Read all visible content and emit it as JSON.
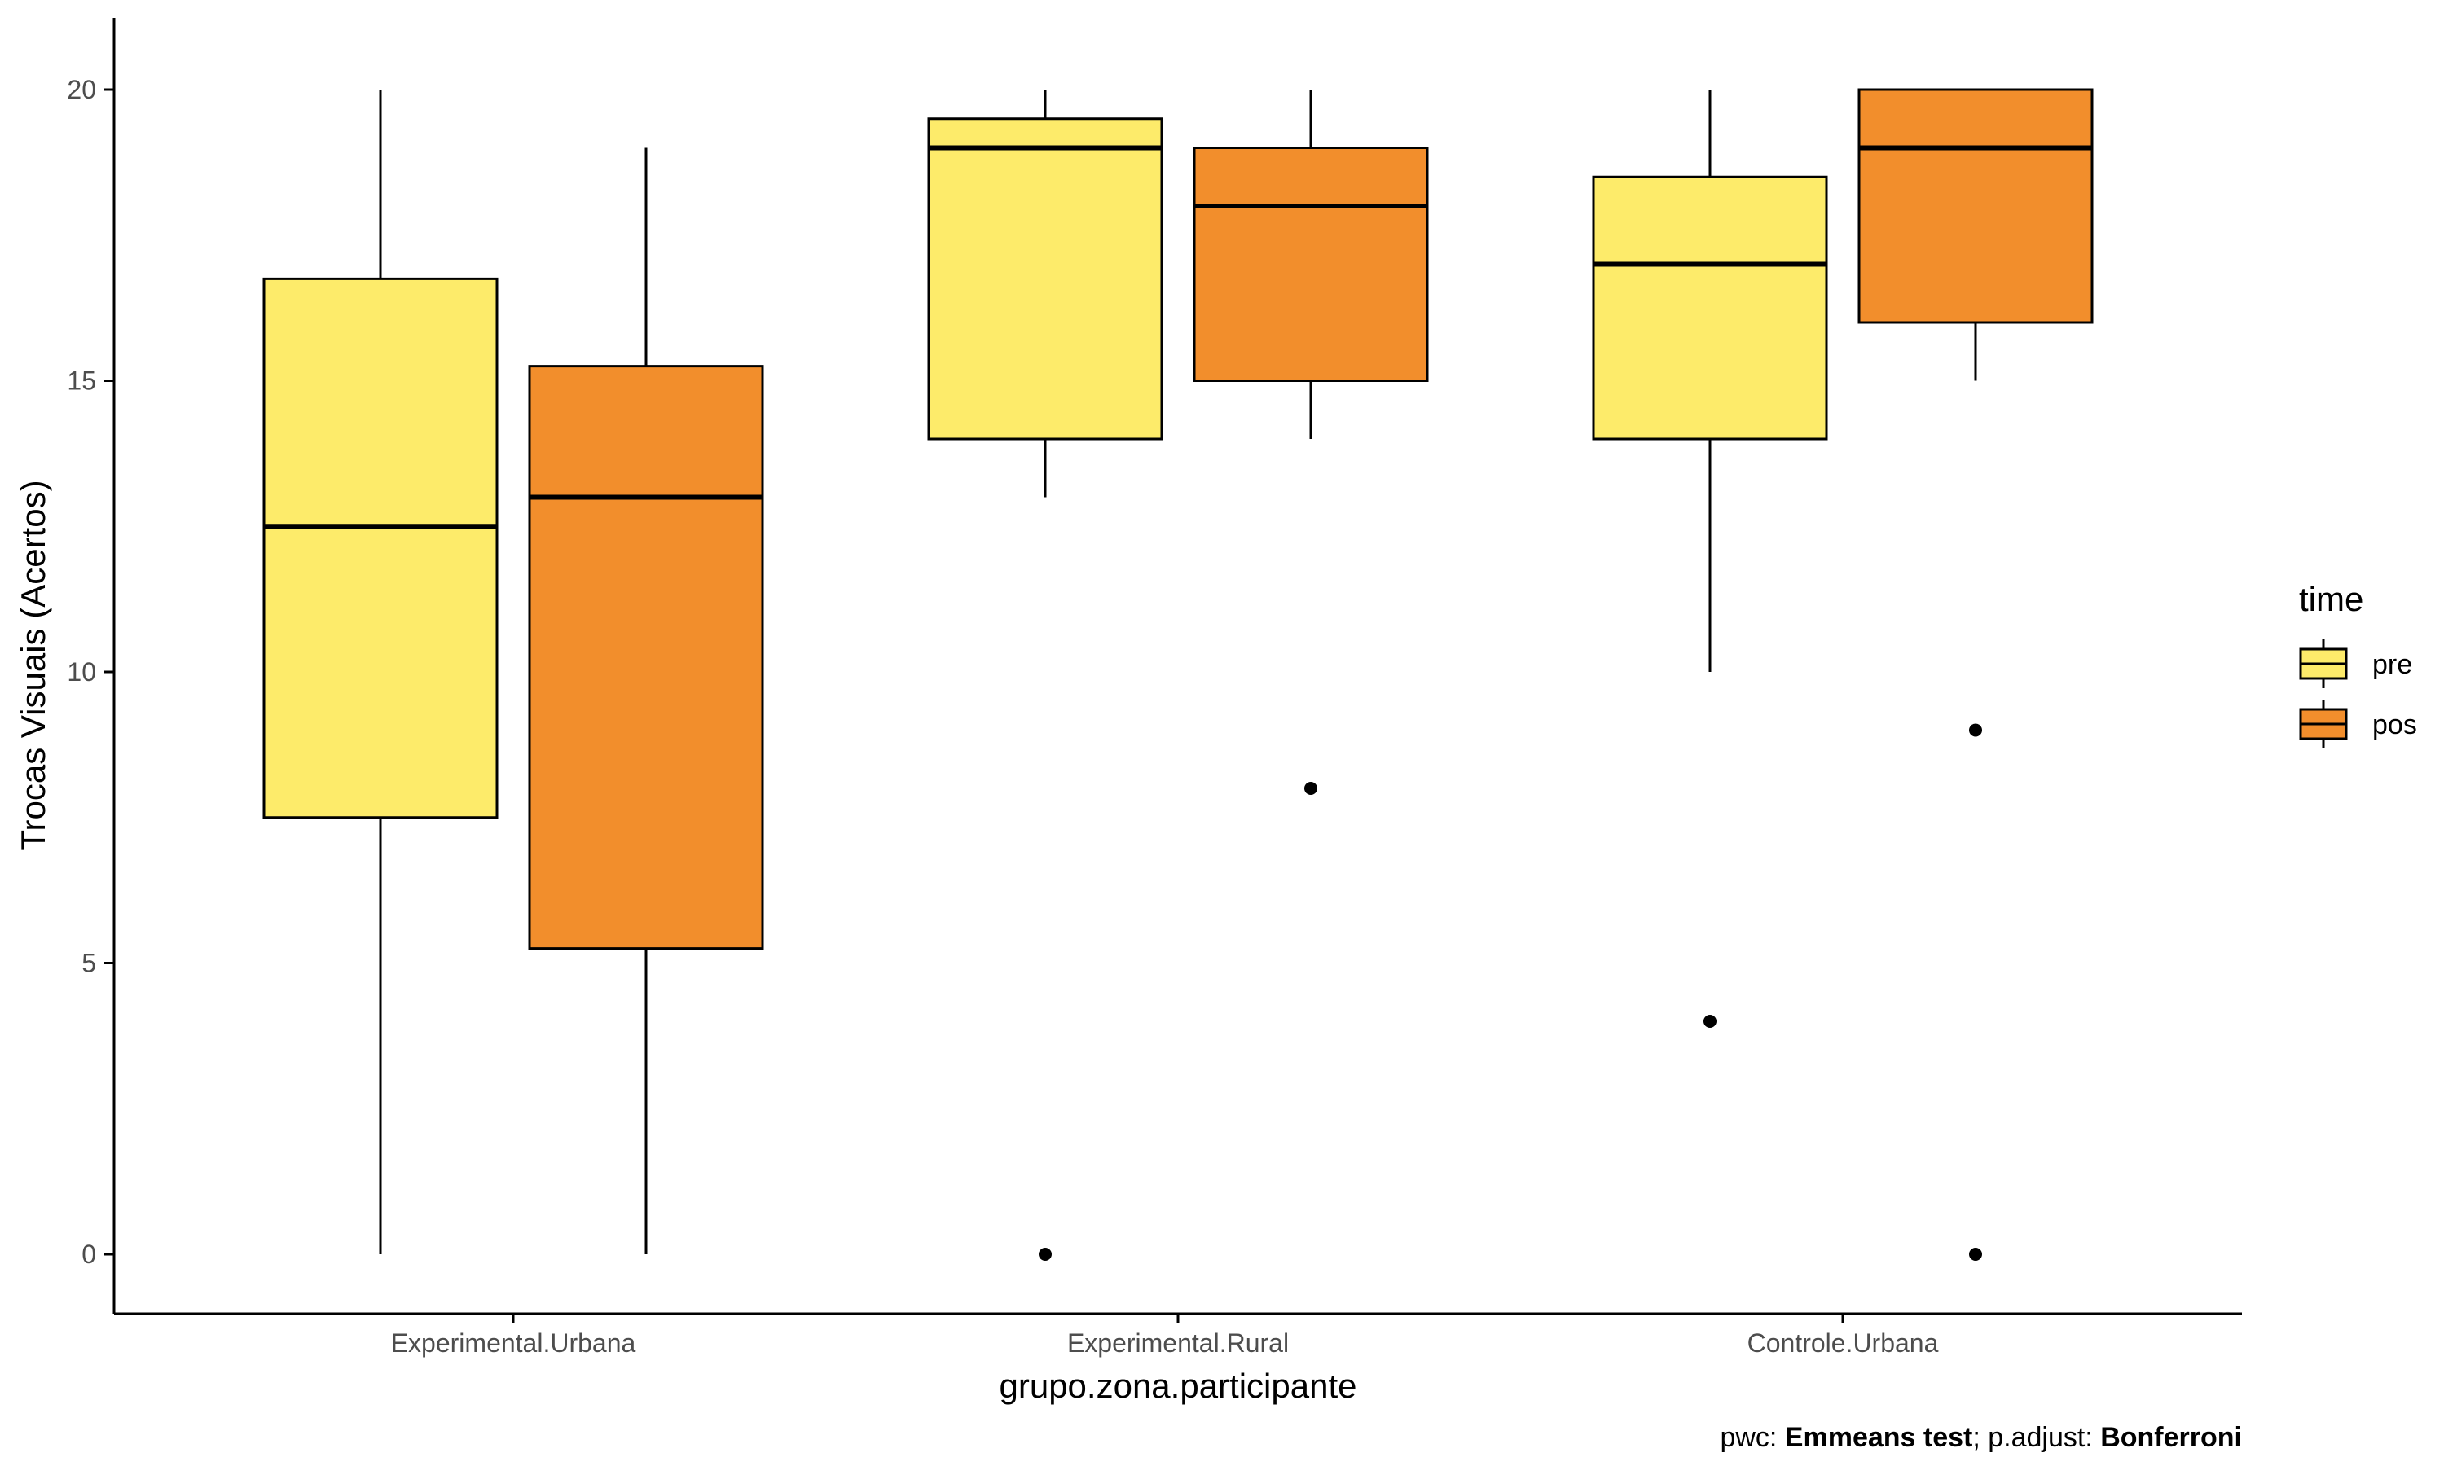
{
  "chart_data": {
    "type": "boxplot",
    "xlabel": "grupo.zona.participante",
    "ylabel": "Trocas Visuais (Acertos)",
    "ylim": [
      -1,
      22.2
    ],
    "yticks": [
      0,
      5,
      10,
      15,
      20
    ],
    "categories": [
      "Experimental.Urbana",
      "Experimental.Rural",
      "Controle.Urbana"
    ],
    "legend": {
      "title": "time",
      "position": "right",
      "entries": [
        {
          "name": "pre",
          "color": "#FDEB6A"
        },
        {
          "name": "pos",
          "color": "#F28E2C"
        }
      ]
    },
    "series": [
      {
        "name": "pre",
        "color": "#FDEB6A",
        "boxes": [
          {
            "lower_whisker": 0,
            "q1": 7.5,
            "median": 12.5,
            "q3": 16.75,
            "upper_whisker": 20,
            "outliers": []
          },
          {
            "lower_whisker": 13,
            "q1": 14,
            "median": 19,
            "q3": 19.5,
            "upper_whisker": 20,
            "outliers": [
              0
            ]
          },
          {
            "lower_whisker": 10,
            "q1": 14,
            "median": 17,
            "q3": 18.5,
            "upper_whisker": 20,
            "outliers": [
              4
            ]
          }
        ]
      },
      {
        "name": "pos",
        "color": "#F28E2C",
        "boxes": [
          {
            "lower_whisker": 0,
            "q1": 5.25,
            "median": 13,
            "q3": 15.25,
            "upper_whisker": 19,
            "outliers": []
          },
          {
            "lower_whisker": 14,
            "q1": 15,
            "median": 18,
            "q3": 19,
            "upper_whisker": 20,
            "outliers": [
              8
            ]
          },
          {
            "lower_whisker": 15,
            "q1": 16,
            "median": 19,
            "q3": 20,
            "upper_whisker": 20,
            "outliers": [
              9,
              0
            ]
          }
        ]
      }
    ],
    "caption": {
      "pwc_label": "pwc: ",
      "pwc_value": "Emmeans test",
      "sep": "; p.adjust: ",
      "adjust_value": "Bonferroni"
    },
    "grid": false
  }
}
